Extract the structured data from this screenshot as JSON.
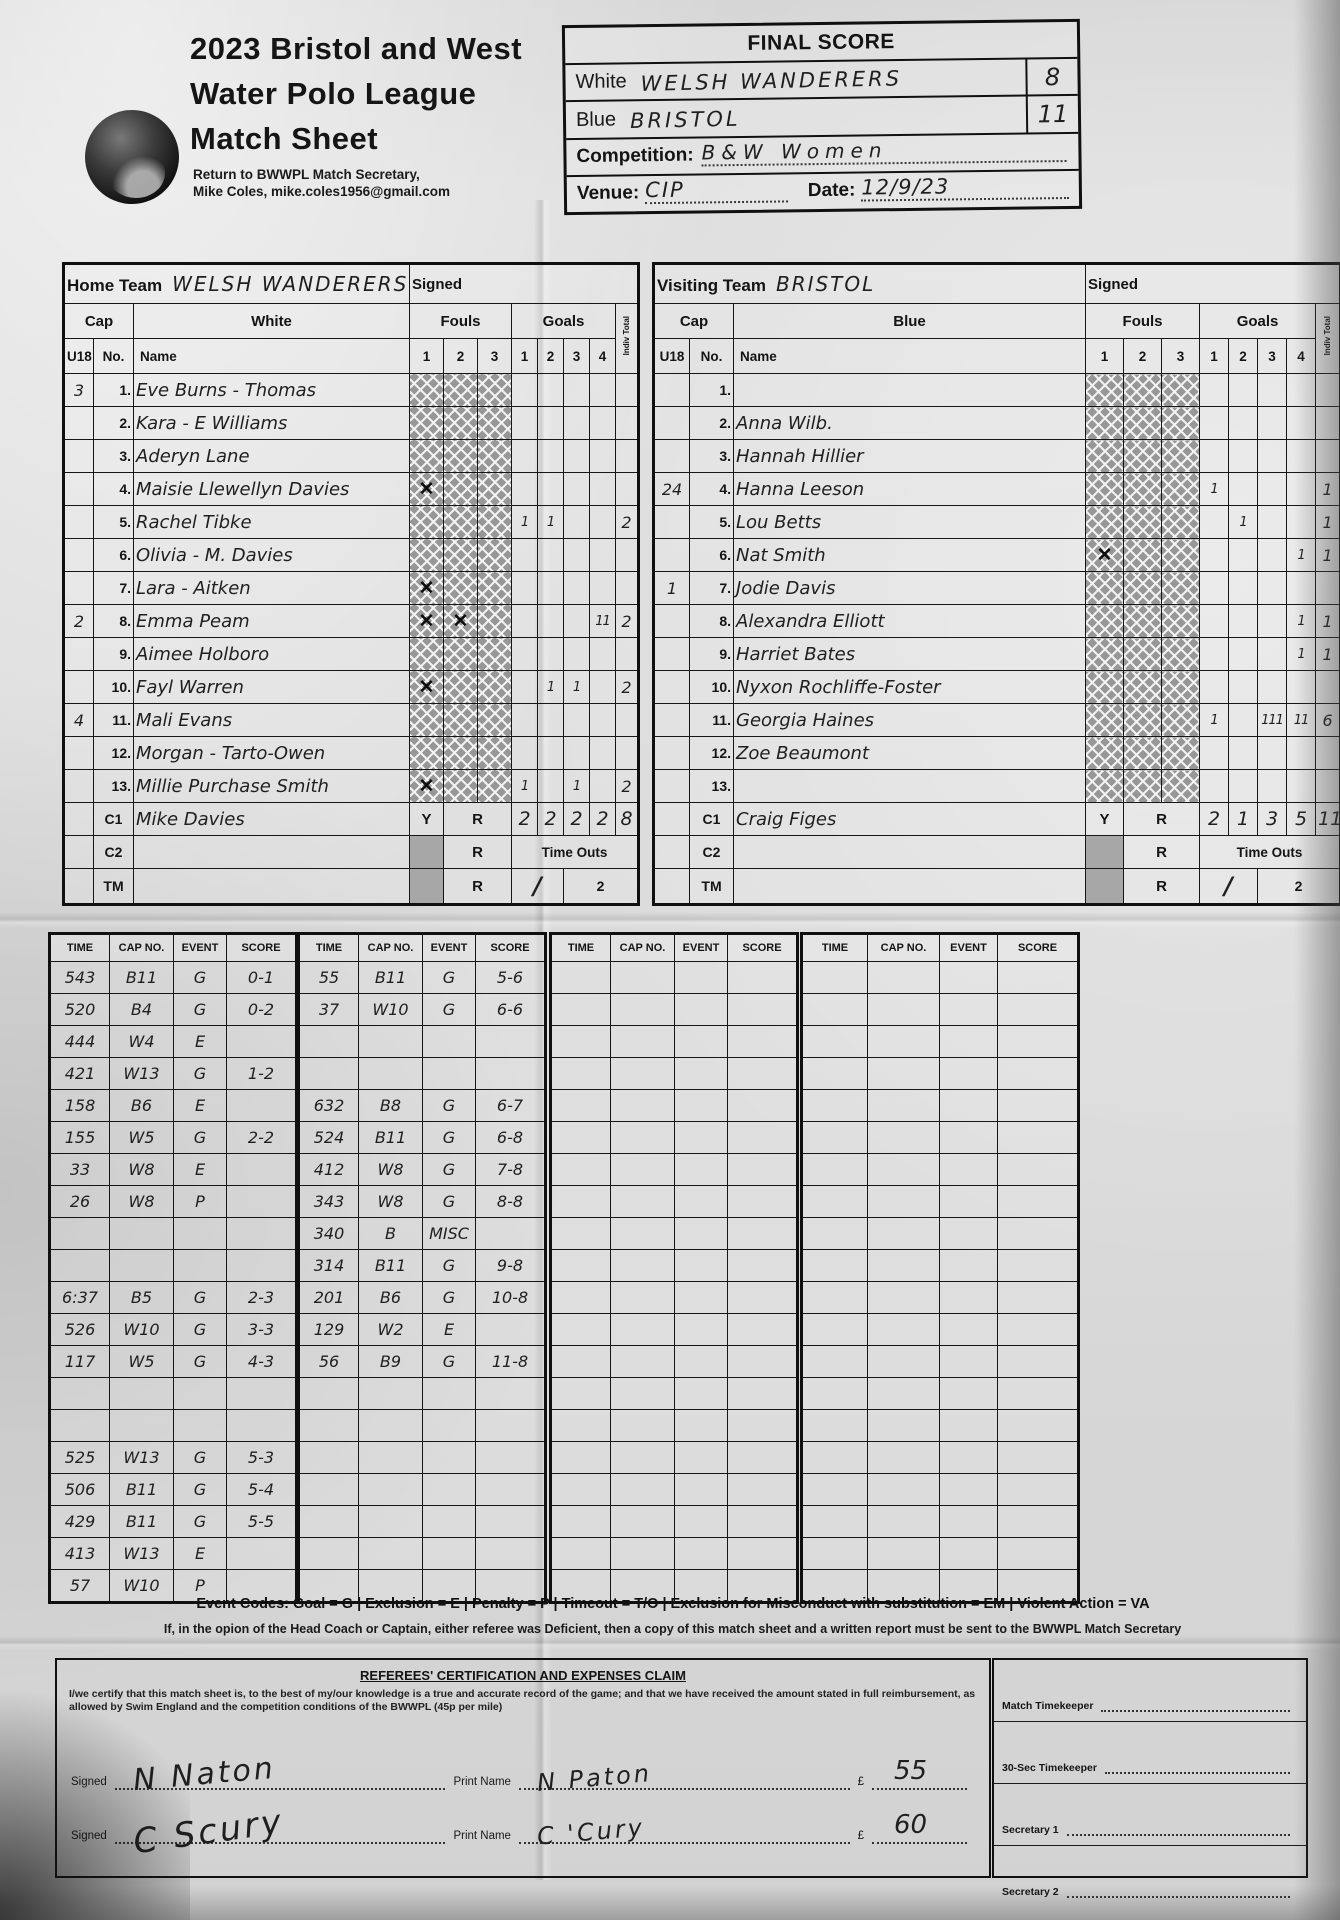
{
  "header": {
    "title1": "2023 Bristol and West",
    "title2": "Water Polo League",
    "title3": "Match Sheet",
    "return1": "Return to BWWPL Match Secretary,",
    "return2": "Mike Coles, mike.coles1956@gmail.com"
  },
  "final": {
    "title": "FINAL SCORE",
    "white_label": "White",
    "white_team": "WELSH WANDERERS",
    "white_score": "8",
    "blue_label": "Blue",
    "blue_team": "BRISTOL",
    "blue_score": "11",
    "competition_label": "Competition:",
    "competition": "B&W Women",
    "venue_label": "Venue:",
    "venue": "CIP",
    "date_label": "Date:",
    "date": "12/9/23"
  },
  "home": {
    "team_label": "Home Team",
    "team_name": "WELSH WANDERERS",
    "signed_label": "Signed",
    "cap_label": "Cap",
    "color_label": "White",
    "u18_label": "U18",
    "no_label": "No.",
    "name_label": "Name",
    "fouls_label": "Fouls",
    "goals_label": "Goals",
    "indiv_label": "Indiv Total",
    "foul_cols": [
      "1",
      "2",
      "3"
    ],
    "goal_cols": [
      "1",
      "2",
      "3",
      "4"
    ],
    "players": [
      {
        "no": "1.",
        "u18": "3",
        "name": "Eve Burns - Thomas",
        "fouls": [
          "",
          "",
          ""
        ],
        "goals": [
          "",
          "",
          "",
          ""
        ],
        "total": ""
      },
      {
        "no": "2.",
        "u18": "",
        "name": "Kara - E Williams",
        "fouls": [
          "",
          "",
          ""
        ],
        "goals": [
          "",
          "",
          "",
          ""
        ],
        "total": ""
      },
      {
        "no": "3.",
        "u18": "",
        "name": "Aderyn Lane",
        "fouls": [
          "",
          "",
          ""
        ],
        "goals": [
          "",
          "",
          "",
          ""
        ],
        "total": ""
      },
      {
        "no": "4.",
        "u18": "",
        "name": "Maisie Llewellyn Davies",
        "fouls": [
          "✕",
          "",
          ""
        ],
        "goals": [
          "",
          "",
          "",
          ""
        ],
        "total": ""
      },
      {
        "no": "5.",
        "u18": "",
        "name": "Rachel Tibke",
        "fouls": [
          "",
          "",
          ""
        ],
        "goals": [
          "1",
          "1",
          "",
          ""
        ],
        "total": "2"
      },
      {
        "no": "6.",
        "u18": "",
        "name": "Olivia - M. Davies",
        "fouls": [
          "",
          "",
          ""
        ],
        "goals": [
          "",
          "",
          "",
          ""
        ],
        "total": ""
      },
      {
        "no": "7.",
        "u18": "",
        "name": "Lara - Aitken",
        "fouls": [
          "✕",
          "",
          ""
        ],
        "goals": [
          "",
          "",
          "",
          ""
        ],
        "total": ""
      },
      {
        "no": "8.",
        "u18": "2",
        "name": "Emma Peam",
        "fouls": [
          "✕",
          "✕",
          ""
        ],
        "goals": [
          "",
          "",
          "",
          "11"
        ],
        "total": "2"
      },
      {
        "no": "9.",
        "u18": "",
        "name": "Aimee Holboro",
        "fouls": [
          "",
          "",
          ""
        ],
        "goals": [
          "",
          "",
          "",
          ""
        ],
        "total": ""
      },
      {
        "no": "10.",
        "u18": "",
        "name": "Fayl Warren",
        "fouls": [
          "✕",
          "",
          ""
        ],
        "goals": [
          "",
          "1",
          "1",
          ""
        ],
        "total": "2"
      },
      {
        "no": "11.",
        "u18": "4",
        "name": "Mali Evans",
        "fouls": [
          "",
          "",
          ""
        ],
        "goals": [
          "",
          "",
          "",
          ""
        ],
        "total": ""
      },
      {
        "no": "12.",
        "u18": "",
        "name": "Morgan - Tarto-Owen",
        "fouls": [
          "",
          "",
          ""
        ],
        "goals": [
          "",
          "",
          "",
          ""
        ],
        "total": ""
      },
      {
        "no": "13.",
        "u18": "",
        "name": "Millie Purchase Smith",
        "fouls": [
          "✕",
          "",
          ""
        ],
        "goals": [
          "1",
          "",
          "1",
          ""
        ],
        "total": "2"
      }
    ],
    "c1": {
      "label": "C1",
      "name": "Mike Davies",
      "y": "Y",
      "r": "R",
      "period_goals": [
        "2",
        "2",
        "2",
        "2"
      ],
      "total": "8"
    },
    "c2": {
      "label": "C2",
      "r": "R",
      "timeouts_label": "Time Outs"
    },
    "tm": {
      "label": "TM",
      "r": "R",
      "timeout1_mark": "∕",
      "timeout2": "2"
    }
  },
  "visiting": {
    "team_label": "Visiting Team",
    "team_name": "BRISTOL",
    "signed_label": "Signed",
    "cap_label": "Cap",
    "color_label": "Blue",
    "u18_label": "U18",
    "no_label": "No.",
    "name_label": "Name",
    "fouls_label": "Fouls",
    "goals_label": "Goals",
    "indiv_label": "Indiv Total",
    "foul_cols": [
      "1",
      "2",
      "3"
    ],
    "goal_cols": [
      "1",
      "2",
      "3",
      "4"
    ],
    "players": [
      {
        "no": "1.",
        "u18": "",
        "name": "",
        "fouls": [
          "",
          "",
          ""
        ],
        "goals": [
          "",
          "",
          "",
          ""
        ],
        "total": ""
      },
      {
        "no": "2.",
        "u18": "",
        "name": "Anna Wilb.",
        "fouls": [
          "",
          "",
          ""
        ],
        "goals": [
          "",
          "",
          "",
          ""
        ],
        "total": ""
      },
      {
        "no": "3.",
        "u18": "",
        "name": "Hannah Hillier",
        "fouls": [
          "",
          "",
          ""
        ],
        "goals": [
          "",
          "",
          "",
          ""
        ],
        "total": ""
      },
      {
        "no": "4.",
        "u18": "24",
        "name": "Hanna Leeson",
        "fouls": [
          "",
          "",
          ""
        ],
        "goals": [
          "1",
          "",
          "",
          ""
        ],
        "total": "1"
      },
      {
        "no": "5.",
        "u18": "",
        "name": "Lou Betts",
        "fouls": [
          "",
          "",
          ""
        ],
        "goals": [
          "",
          "1",
          "",
          ""
        ],
        "total": "1"
      },
      {
        "no": "6.",
        "u18": "",
        "name": "Nat Smith",
        "fouls": [
          "✕",
          "",
          ""
        ],
        "goals": [
          "",
          "",
          "",
          "1"
        ],
        "total": "1"
      },
      {
        "no": "7.",
        "u18": "1",
        "name": "Jodie Davis",
        "fouls": [
          "",
          "",
          ""
        ],
        "goals": [
          "",
          "",
          "",
          ""
        ],
        "total": ""
      },
      {
        "no": "8.",
        "u18": "",
        "name": "Alexandra Elliott",
        "fouls": [
          "",
          "",
          ""
        ],
        "goals": [
          "",
          "",
          "",
          "1"
        ],
        "total": "1"
      },
      {
        "no": "9.",
        "u18": "",
        "name": "Harriet Bates",
        "fouls": [
          "",
          "",
          ""
        ],
        "goals": [
          "",
          "",
          "",
          "1"
        ],
        "total": "1"
      },
      {
        "no": "10.",
        "u18": "",
        "name": "Nyxon Rochliffe-Foster",
        "fouls": [
          "",
          "",
          ""
        ],
        "goals": [
          "",
          "",
          "",
          ""
        ],
        "total": ""
      },
      {
        "no": "11.",
        "u18": "",
        "name": "Georgia Haines",
        "fouls": [
          "",
          "",
          ""
        ],
        "goals": [
          "1",
          "",
          "111",
          "11"
        ],
        "total": "6"
      },
      {
        "no": "12.",
        "u18": "",
        "name": "Zoe Beaumont",
        "fouls": [
          "",
          "",
          ""
        ],
        "goals": [
          "",
          "",
          "",
          ""
        ],
        "total": ""
      },
      {
        "no": "13.",
        "u18": "",
        "name": "",
        "fouls": [
          "",
          "",
          ""
        ],
        "goals": [
          "",
          "",
          "",
          ""
        ],
        "total": ""
      }
    ],
    "c1": {
      "label": "C1",
      "name": "Craig Figes",
      "y": "Y",
      "r": "R",
      "period_goals": [
        "2",
        "1",
        "3",
        "5"
      ],
      "total": "11"
    },
    "c2": {
      "label": "C2",
      "r": "R",
      "timeouts_label": "Time Outs"
    },
    "tm": {
      "label": "TM",
      "r": "R",
      "timeout1_mark": "∕",
      "timeout2": "2"
    }
  },
  "logs": [
    {
      "headers": [
        "TIME",
        "CAP NO.",
        "EVENT",
        "SCORE"
      ],
      "rows": [
        [
          "543",
          "B11",
          "G",
          "0-1"
        ],
        [
          "520",
          "B4",
          "G",
          "0-2"
        ],
        [
          "444",
          "W4",
          "E",
          ""
        ],
        [
          "421",
          "W13",
          "G",
          "1-2"
        ],
        [
          "158",
          "B6",
          "E",
          ""
        ],
        [
          "155",
          "W5",
          "G",
          "2-2"
        ],
        [
          "33",
          "W8",
          "E",
          ""
        ],
        [
          "26",
          "W8",
          "P",
          ""
        ],
        [
          "",
          "",
          "",
          ""
        ],
        [
          "",
          "",
          "",
          ""
        ],
        [
          "6:37",
          "B5",
          "G",
          "2-3"
        ],
        [
          "526",
          "W10",
          "G",
          "3-3"
        ],
        [
          "117",
          "W5",
          "G",
          "4-3"
        ],
        [
          "",
          "",
          "",
          ""
        ],
        [
          "",
          "",
          "",
          ""
        ],
        [
          "525",
          "W13",
          "G",
          "5-3"
        ],
        [
          "506",
          "B11",
          "G",
          "5-4"
        ],
        [
          "429",
          "B11",
          "G",
          "5-5"
        ],
        [
          "413",
          "W13",
          "E",
          ""
        ],
        [
          "57",
          "W10",
          "P",
          ""
        ]
      ]
    },
    {
      "headers": [
        "TIME",
        "CAP NO.",
        "EVENT",
        "SCORE"
      ],
      "rows": [
        [
          "55",
          "B11",
          "G",
          "5-6"
        ],
        [
          "37",
          "W10",
          "G",
          "6-6"
        ],
        [
          "",
          "",
          "",
          ""
        ],
        [
          "",
          "",
          "",
          ""
        ],
        [
          "632",
          "B8",
          "G",
          "6-7"
        ],
        [
          "524",
          "B11",
          "G",
          "6-8"
        ],
        [
          "412",
          "W8",
          "G",
          "7-8"
        ],
        [
          "343",
          "W8",
          "G",
          "8-8"
        ],
        [
          "340",
          "B",
          "MISC",
          ""
        ],
        [
          "314",
          "B11",
          "G",
          "9-8"
        ],
        [
          "201",
          "B6",
          "G",
          "10-8"
        ],
        [
          "129",
          "W2",
          "E",
          ""
        ],
        [
          "56",
          "B9",
          "G",
          "11-8"
        ],
        [
          "",
          "",
          "",
          ""
        ],
        [
          "",
          "",
          "",
          ""
        ],
        [
          "",
          "",
          "",
          ""
        ],
        [
          "",
          "",
          "",
          ""
        ],
        [
          "",
          "",
          "",
          ""
        ],
        [
          "",
          "",
          "",
          ""
        ],
        [
          "",
          "",
          "",
          ""
        ]
      ]
    },
    {
      "headers": [
        "TIME",
        "CAP NO.",
        "EVENT",
        "SCORE"
      ],
      "rows": [
        [
          "",
          "",
          "",
          ""
        ],
        [
          "",
          "",
          "",
          ""
        ],
        [
          "",
          "",
          "",
          ""
        ],
        [
          "",
          "",
          "",
          ""
        ],
        [
          "",
          "",
          "",
          ""
        ],
        [
          "",
          "",
          "",
          ""
        ],
        [
          "",
          "",
          "",
          ""
        ],
        [
          "",
          "",
          "",
          ""
        ],
        [
          "",
          "",
          "",
          ""
        ],
        [
          "",
          "",
          "",
          ""
        ],
        [
          "",
          "",
          "",
          ""
        ],
        [
          "",
          "",
          "",
          ""
        ],
        [
          "",
          "",
          "",
          ""
        ],
        [
          "",
          "",
          "",
          ""
        ],
        [
          "",
          "",
          "",
          ""
        ],
        [
          "",
          "",
          "",
          ""
        ],
        [
          "",
          "",
          "",
          ""
        ],
        [
          "",
          "",
          "",
          ""
        ],
        [
          "",
          "",
          "",
          ""
        ],
        [
          "",
          "",
          "",
          ""
        ]
      ]
    },
    {
      "headers": [
        "TIME",
        "CAP NO.",
        "EVENT",
        "SCORE"
      ],
      "rows": [
        [
          "",
          "",
          "",
          ""
        ],
        [
          "",
          "",
          "",
          ""
        ],
        [
          "",
          "",
          "",
          ""
        ],
        [
          "",
          "",
          "",
          ""
        ],
        [
          "",
          "",
          "",
          ""
        ],
        [
          "",
          "",
          "",
          ""
        ],
        [
          "",
          "",
          "",
          ""
        ],
        [
          "",
          "",
          "",
          ""
        ],
        [
          "",
          "",
          "",
          ""
        ],
        [
          "",
          "",
          "",
          ""
        ],
        [
          "",
          "",
          "",
          ""
        ],
        [
          "",
          "",
          "",
          ""
        ],
        [
          "",
          "",
          "",
          ""
        ],
        [
          "",
          "",
          "",
          ""
        ],
        [
          "",
          "",
          "",
          ""
        ],
        [
          "",
          "",
          "",
          ""
        ],
        [
          "",
          "",
          "",
          ""
        ],
        [
          "",
          "",
          "",
          ""
        ],
        [
          "",
          "",
          "",
          ""
        ],
        [
          "",
          "",
          "",
          ""
        ]
      ]
    }
  ],
  "footer": {
    "event_codes": "Event Codes: Goal = G | Exclusion = E | Penalty = P | Timeout = T/O | Exclusion for Misconduct with substitution = EM | Violent Action = VA",
    "deficient": "If, in the opion of the Head Coach or Captain, either referee was Deficient, then a copy of this match sheet and a written report must be sent to the BWWPL Match Secretary",
    "ref_title": "REFEREES' CERTIFICATION AND EXPENSES CLAIM",
    "ref_cert": "I/we certify that this match sheet is, to the best of my/our knowledge is a true and accurate record of the game; and that we have received the amount stated in full reimbursement, as allowed by Swim England and the competition conditions of the BWWPL (45p per mile)",
    "sig_rows": [
      {
        "signed_label": "Signed",
        "signature": "N Naton",
        "print_label": "Print Name",
        "print_name": "N Paton",
        "pound": "£",
        "amount": "55"
      },
      {
        "signed_label": "Signed",
        "signature": "C Scury",
        "print_label": "Print Name",
        "print_name": "C 'Cury",
        "pound": "£",
        "amount": "60"
      }
    ],
    "officials": [
      "Match Timekeeper",
      "30-Sec Timekeeper",
      "Secretary 1",
      "Secretary 2"
    ]
  }
}
